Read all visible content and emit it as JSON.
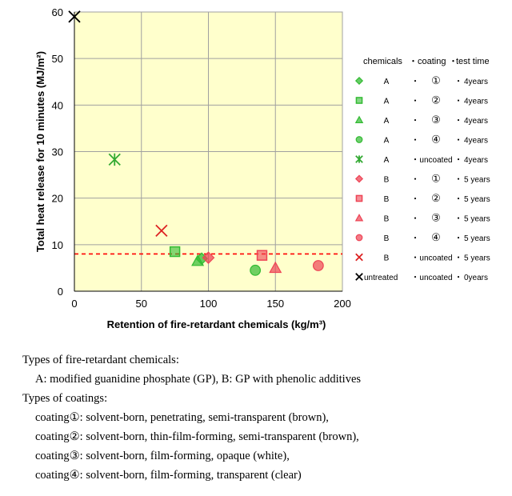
{
  "chart_data": {
    "type": "scatter",
    "xlabel": "Retention of fire-retardant chemicals (kg/m³)",
    "ylabel": "Total heat release for 10 minutes (MJ/m²)",
    "xlim": [
      0,
      200
    ],
    "ylim": [
      0,
      60
    ],
    "xticks": [
      0,
      50,
      100,
      150,
      200
    ],
    "yticks": [
      0,
      10,
      20,
      30,
      40,
      50,
      60
    ],
    "grid": true,
    "background": "#ffffcc",
    "reference_line": {
      "y": 8,
      "style": "dashed",
      "color": "#ff0000"
    },
    "legend": {
      "placement": "right",
      "header": {
        "chemicals": "chemicals",
        "coating": "coating",
        "test_time": "test time",
        "sep": "・"
      }
    },
    "series": [
      {
        "chem": "A",
        "coating": "①",
        "time": "4years",
        "marker": "diamond",
        "color": "#33bb33",
        "points": [
          [
            95,
            7
          ]
        ]
      },
      {
        "chem": "A",
        "coating": "②",
        "time": "4years",
        "marker": "square",
        "color": "#33bb33",
        "points": [
          [
            75,
            8.5
          ]
        ]
      },
      {
        "chem": "A",
        "coating": "③",
        "time": "4years",
        "marker": "triangle",
        "color": "#33bb33",
        "points": [
          [
            92,
            6.5
          ]
        ]
      },
      {
        "chem": "A",
        "coating": "④",
        "time": "4years",
        "marker": "circle",
        "color": "#33bb33",
        "points": [
          [
            135,
            4.5
          ]
        ]
      },
      {
        "chem": "A",
        "coating": "uncoated",
        "time": "4years",
        "marker": "asterisk",
        "color": "#33aa33",
        "points": [
          [
            30,
            28.3
          ]
        ]
      },
      {
        "chem": "B",
        "coating": "①",
        "time": "5 years",
        "marker": "diamond",
        "color": "#ee4455",
        "points": [
          [
            100,
            7.2
          ]
        ]
      },
      {
        "chem": "B",
        "coating": "②",
        "time": "5 years",
        "marker": "square",
        "color": "#ee4455",
        "points": [
          [
            140,
            7.7
          ]
        ]
      },
      {
        "chem": "B",
        "coating": "③",
        "time": "5 years",
        "marker": "triangle",
        "color": "#ee4455",
        "points": [
          [
            150,
            5
          ]
        ]
      },
      {
        "chem": "B",
        "coating": "④",
        "time": "5 years",
        "marker": "circle",
        "color": "#ee4455",
        "points": [
          [
            182,
            5.5
          ]
        ]
      },
      {
        "chem": "B",
        "coating": "uncoated",
        "time": "5 years",
        "marker": "x",
        "color": "#dd2222",
        "points": [
          [
            65,
            13
          ]
        ]
      },
      {
        "chem": "untreated",
        "coating": "uncoated",
        "time": "0years",
        "marker": "x",
        "color": "#000000",
        "points": [
          [
            0,
            59
          ]
        ]
      }
    ]
  },
  "notes": {
    "chem_title": "Types of fire-retardant chemicals:",
    "chem_desc": "A: modified guanidine phosphate (GP), B: GP with phenolic additives",
    "coat_title": "Types of coatings:",
    "coatings": [
      "coating①: solvent-born, penetrating, semi-transparent (brown),",
      "coating②: solvent-born, thin-film-forming, semi-transparent (brown),",
      "coating③: solvent-born, film-forming, opaque (white),",
      "coating④: solvent-born, film-forming, transparent (clear)"
    ]
  }
}
